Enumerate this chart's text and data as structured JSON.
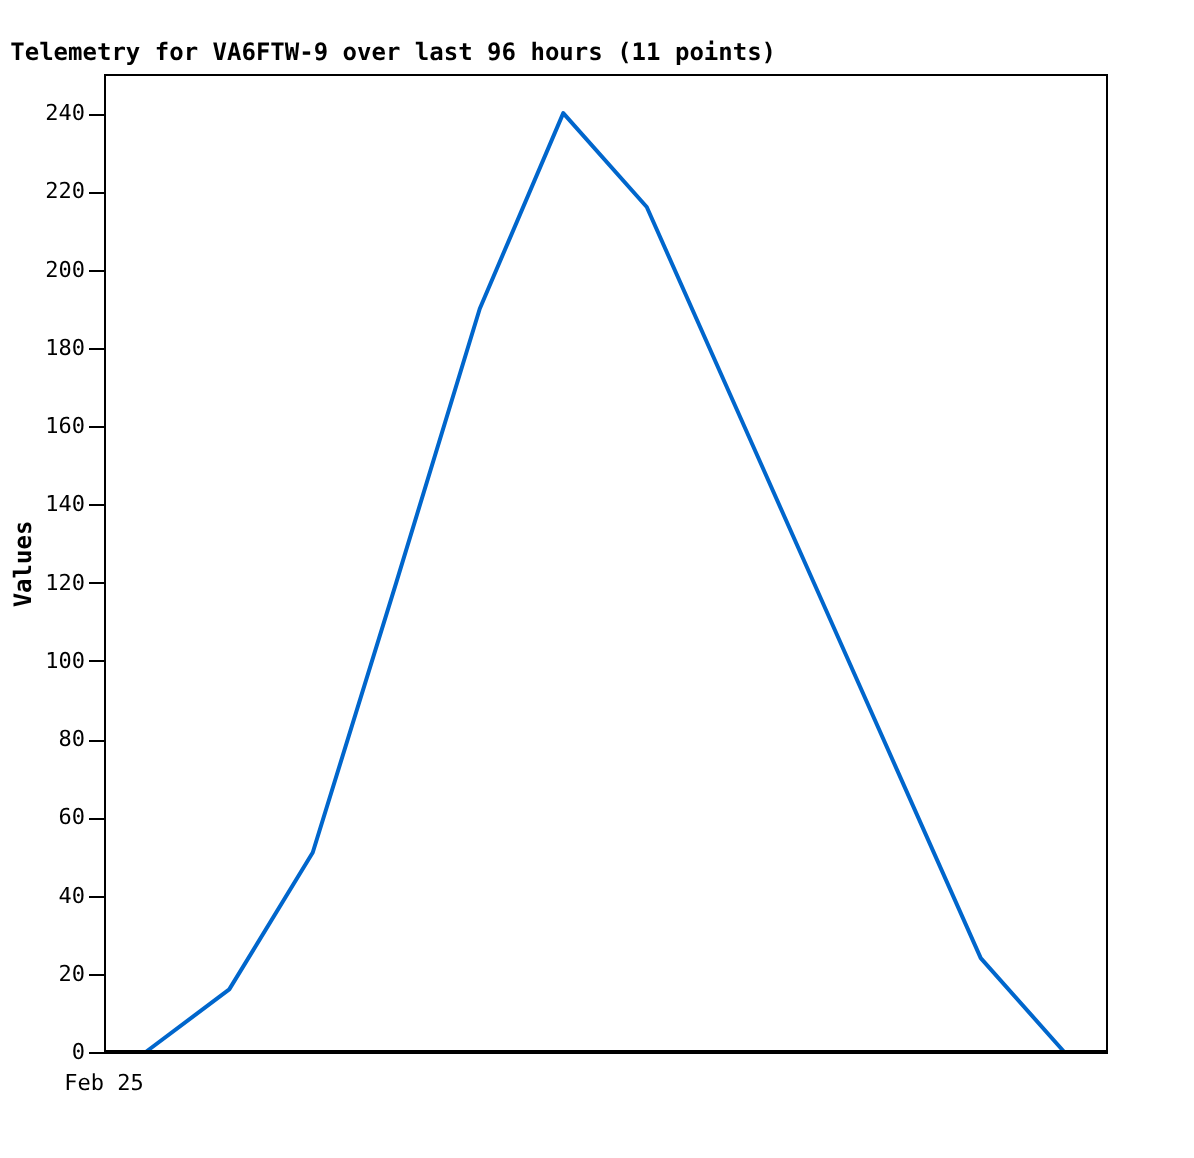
{
  "chart_data": {
    "type": "line",
    "title": "Telemetry for VA6FTW-9 over last 96 hours (11 points)",
    "ylabel": "Values",
    "categories": [
      null,
      null,
      null,
      null,
      null,
      null,
      null,
      null,
      null,
      null,
      null,
      null
    ],
    "annotations": [
      "Feb 25"
    ],
    "ylim": [
      0,
      250
    ],
    "yticks": [
      0,
      20,
      40,
      60,
      80,
      100,
      120,
      140,
      160,
      180,
      200,
      220,
      240
    ],
    "grid": false,
    "marker": "none",
    "line_style": "solid",
    "ref_lines": [
      {
        "axis": "y",
        "value": 0,
        "color": "#000000"
      }
    ],
    "series": [
      {
        "color": "#0066cc",
        "values": [
          0,
          16,
          51,
          120,
          190,
          240,
          216,
          168,
          120,
          72,
          24,
          0
        ]
      }
    ]
  }
}
